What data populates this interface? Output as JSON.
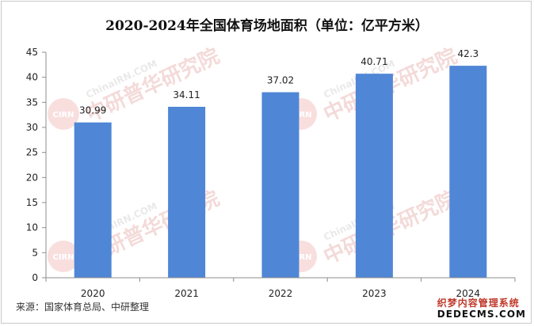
{
  "chart_data": {
    "type": "bar",
    "title": "2020-2024年全国体育场地面积（单位：亿平方米）",
    "categories": [
      "2020",
      "2021",
      "2022",
      "2023",
      "2024"
    ],
    "values": [
      30.99,
      34.11,
      37.02,
      40.71,
      42.3
    ],
    "value_labels": [
      "30.99",
      "34.11",
      "37.02",
      "40.71",
      "42.3"
    ],
    "ylim": [
      0,
      45
    ],
    "yticks": [
      0,
      5,
      10,
      15,
      20,
      25,
      30,
      35,
      40,
      45
    ],
    "grid": false,
    "legend": "none",
    "bar_color": "#4f86d6"
  },
  "source": "来源：国家体育总局、中研整理",
  "watermark": {
    "cn": "中研普华研究院",
    "en": "ChinaIRN.COM",
    "logo": "CIRN"
  },
  "brand": {
    "cn": "织梦内容管理系统",
    "en": "DEDECMS.COM"
  }
}
